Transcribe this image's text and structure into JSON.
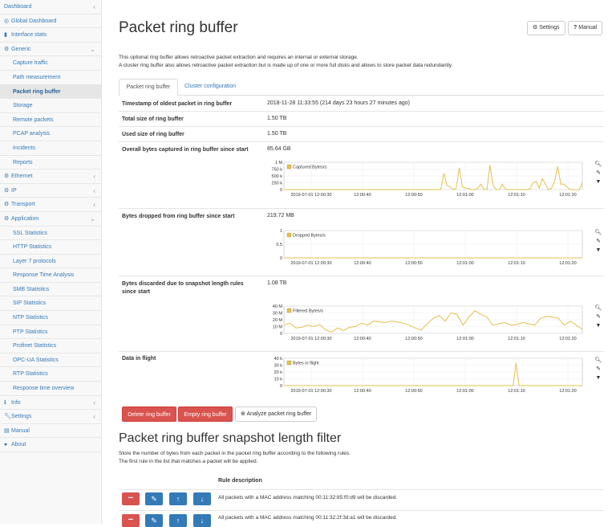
{
  "sidebar": {
    "items": [
      {
        "label": "Dashboard",
        "icon": "",
        "arrow": "‹",
        "level": 0
      },
      {
        "label": "Global Dashboard",
        "icon": "dashboard-icon",
        "arrow": "",
        "level": 0
      },
      {
        "label": "Interface stats",
        "icon": "bar-chart-icon",
        "arrow": "",
        "level": 0
      },
      {
        "label": "Generic",
        "icon": "gear-icon",
        "arrow": "⌄",
        "level": 0,
        "bold": true
      },
      {
        "label": "Capture traffic",
        "icon": "",
        "arrow": "",
        "level": 1
      },
      {
        "label": "Path measurement",
        "icon": "",
        "arrow": "",
        "level": 1
      },
      {
        "label": "Packet ring buffer",
        "icon": "",
        "arrow": "",
        "level": 1,
        "active": true
      },
      {
        "label": "Storage",
        "icon": "",
        "arrow": "",
        "level": 1
      },
      {
        "label": "Remote packets",
        "icon": "",
        "arrow": "",
        "level": 1
      },
      {
        "label": "PCAP analysis",
        "icon": "",
        "arrow": "",
        "level": 1
      },
      {
        "label": "Incidents",
        "icon": "",
        "arrow": "",
        "level": 1
      },
      {
        "label": "Reports",
        "icon": "",
        "arrow": "",
        "level": 1
      },
      {
        "label": "Ethernet",
        "icon": "gear-icon",
        "arrow": "‹",
        "level": 0
      },
      {
        "label": "IP",
        "icon": "gear-icon",
        "arrow": "‹",
        "level": 0
      },
      {
        "label": "Transport",
        "icon": "gear-icon",
        "arrow": "‹",
        "level": 0
      },
      {
        "label": "Application",
        "icon": "gear-icon",
        "arrow": "⌄",
        "level": 0
      },
      {
        "label": "SSL Statistics",
        "icon": "",
        "arrow": "",
        "level": 1
      },
      {
        "label": "HTTP Statistics",
        "icon": "",
        "arrow": "",
        "level": 1
      },
      {
        "label": "Layer 7 protocols",
        "icon": "",
        "arrow": "",
        "level": 1
      },
      {
        "label": "Response Time Analysis",
        "icon": "",
        "arrow": "",
        "level": 1
      },
      {
        "label": "SMB Statistics",
        "icon": "",
        "arrow": "",
        "level": 1
      },
      {
        "label": "SIP Statistics",
        "icon": "",
        "arrow": "",
        "level": 1
      },
      {
        "label": "NTP Statistics",
        "icon": "",
        "arrow": "",
        "level": 1
      },
      {
        "label": "PTP Statistics",
        "icon": "",
        "arrow": "",
        "level": 1
      },
      {
        "label": "Profinet Statistics",
        "icon": "",
        "arrow": "",
        "level": 1
      },
      {
        "label": "OPC-UA Statistics",
        "icon": "",
        "arrow": "",
        "level": 1
      },
      {
        "label": "RTP Statistics",
        "icon": "",
        "arrow": "",
        "level": 1
      },
      {
        "label": "Response time overview",
        "icon": "",
        "arrow": "",
        "level": 1
      },
      {
        "label": "Info",
        "icon": "info-icon",
        "arrow": "‹",
        "level": 0
      },
      {
        "label": "Settings",
        "icon": "wrench-icon",
        "arrow": "‹",
        "level": 0
      },
      {
        "label": "Manual",
        "icon": "book-icon",
        "arrow": "",
        "level": 0
      },
      {
        "label": "About",
        "icon": "about-icon",
        "arrow": "",
        "level": 0
      }
    ]
  },
  "header": {
    "title": "Packet ring buffer",
    "settings_label": "Settings",
    "manual_label": "Manual"
  },
  "description": {
    "line1": "This optional ring buffer allows retroactive packet extraction and requires an internal or external storage.",
    "line2": "A cluster ring buffer also allows retroactive packet extraction but is made up of one or more full disks and allows to store packet data redundantly."
  },
  "tabs": {
    "ring_buffer": "Packet ring buffer",
    "cluster": "Cluster configuration"
  },
  "rows": {
    "oldest_label": "Timestamp of oldest packet in ring buffer",
    "oldest_value": "2018-11-28 11:33:55 (214 days 23 hours 27 minutes ago)",
    "total_label": "Total size of ring buffer",
    "total_value": "1.50 TB",
    "used_label": "Used size of ring buffer",
    "used_value": "1.50 TB",
    "captured_label": "Overall bytes captured in ring buffer since start",
    "captured_value": "85.64 GB",
    "dropped_label": "Bytes dropped from ring buffer since start",
    "dropped_value": "219.72 MB",
    "discarded_label": "Bytes discarded due to snapshot length rules since start",
    "discarded_value": "1.08 TB",
    "inflight_label": "Data in flight"
  },
  "x_ticks": [
    "2019-07-01 12:00:30",
    "12:00:40",
    "12:00:50",
    "12:01:00",
    "12:01:10",
    "12:01:20"
  ],
  "charts": [
    {
      "legend": "Captured Bytes/s",
      "y_ticks": [
        "1 M",
        "750 k",
        "500 k",
        "250 k",
        "0"
      ],
      "ymax": 1000000,
      "values": [
        0,
        0,
        0,
        0,
        0,
        0,
        0,
        0,
        0,
        0,
        0,
        0,
        0,
        0,
        0,
        0,
        0,
        0,
        0,
        0,
        0,
        0,
        0,
        0,
        0,
        0,
        0,
        0,
        0,
        0,
        0,
        0,
        0,
        0,
        0,
        0,
        0,
        0,
        0,
        0,
        0,
        0,
        0,
        0,
        0,
        0,
        0,
        0,
        0,
        0,
        0,
        0,
        600000,
        150000,
        100000,
        0,
        50000,
        800000,
        100000,
        50000,
        50000,
        0,
        0,
        50000,
        200000,
        0,
        0,
        900000,
        150000,
        0,
        0,
        200000,
        30000,
        0,
        0,
        0,
        0,
        0,
        0,
        0,
        30000,
        250000,
        300000,
        50000,
        400000,
        200000,
        0,
        50000,
        300000,
        850000,
        200000,
        200000,
        100000,
        0,
        0,
        0,
        0,
        250000
      ]
    },
    {
      "legend": "Dropped Bytes/s",
      "y_ticks": [
        "1",
        "0.5",
        "0"
      ],
      "ymax": 1,
      "values": []
    },
    {
      "legend": "Filtered Bytes/s",
      "y_ticks": [
        "40 M",
        "30 M",
        "20 M",
        "10 M",
        "0"
      ],
      "ymax": 40000000,
      "values": [
        12000000,
        15000000,
        8000000,
        9000000,
        12000000,
        10000000,
        13000000,
        5000000,
        2000000,
        8000000,
        4000000,
        9000000,
        10000000,
        15000000,
        12000000,
        18000000,
        17000000,
        16000000,
        18000000,
        17000000,
        15000000,
        12000000,
        8000000,
        5000000,
        14000000,
        22000000,
        26000000,
        18000000,
        30000000,
        28000000,
        12000000,
        24000000,
        33000000,
        28000000,
        24000000,
        12000000,
        14000000,
        16000000,
        12000000,
        13000000,
        16000000,
        14000000,
        12000000,
        22000000,
        25000000,
        24000000,
        22000000,
        12000000,
        18000000,
        12000000,
        6000000
      ]
    },
    {
      "legend": "Bytes in flight",
      "y_ticks": [
        "40 k",
        "30 k",
        "20 k",
        "10 k",
        "0"
      ],
      "ymax": 40000,
      "values": [
        0,
        0,
        0,
        0,
        0,
        0,
        0,
        0,
        0,
        0,
        0,
        0,
        0,
        0,
        0,
        0,
        0,
        0,
        0,
        0,
        0,
        0,
        0,
        0,
        0,
        0,
        0,
        0,
        0,
        0,
        0,
        0,
        0,
        0,
        0,
        0,
        0,
        0,
        0,
        0,
        0,
        0,
        0,
        0,
        0,
        0,
        0,
        0,
        0,
        0,
        0,
        0,
        0,
        0,
        0,
        0,
        0,
        0,
        0,
        0,
        0,
        0,
        0,
        0,
        0,
        0,
        0,
        0,
        0,
        0,
        0,
        0,
        0,
        0,
        0,
        0,
        0,
        33000,
        0,
        0,
        0,
        0,
        0,
        0,
        0,
        0,
        0,
        0,
        0,
        0,
        0,
        0,
        0,
        0,
        0,
        0,
        0,
        0,
        0,
        0
      ]
    }
  ],
  "actions": {
    "delete": "Delete ring buffer",
    "empty": "Empty ring buffer",
    "analyze": "Analyze packet ring buffer"
  },
  "filter": {
    "title": "Packet ring buffer snapshot length filter",
    "desc1": "Store the number of bytes from each packet in the packet ring buffer according to the following rules.",
    "desc2": "The first rule in the list that matches a packet will be applied.",
    "column": "Rule description",
    "rules": [
      "All packets with a MAC address matching 00:11:32:85:f0:d9 will be discarded.",
      "All packets with a MAC address matching 00:11:32:2f:3d:a1 will be discarded."
    ]
  },
  "colors": {
    "link": "#337ab7",
    "line": "#e4c04f",
    "danger": "#d9534f",
    "primary": "#337ab7"
  }
}
